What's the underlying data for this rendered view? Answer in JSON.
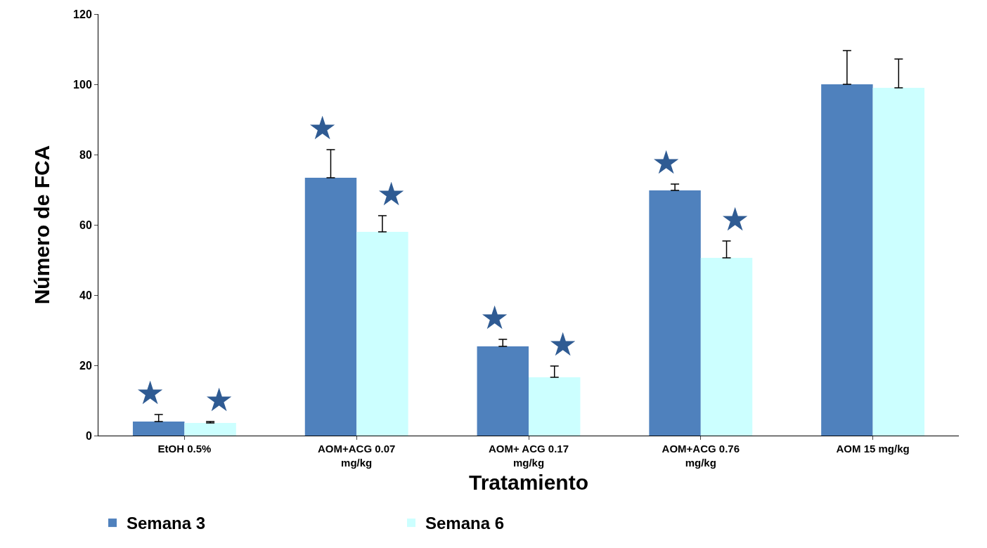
{
  "chart_data": {
    "type": "bar",
    "xlabel": "Tratamiento",
    "ylabel": "Número de FCA",
    "categories": [
      "EtOH 0.5%",
      "AOM+ACG 0.07 mg/kg",
      "AOM+ ACG 0.17 mg/kg",
      "AOM+ACG 0.76 mg/kg",
      "AOM 15 mg/kg"
    ],
    "series": [
      {
        "name": "Semana 3",
        "color": "#4f81bd",
        "values": [
          4,
          73.4,
          25.4,
          69.8,
          100
        ],
        "errors": [
          [
            4,
            6
          ],
          [
            73.4,
            81.4
          ],
          [
            25.4,
            27.4
          ],
          [
            69.8,
            71.6
          ],
          [
            100,
            109.6
          ]
        ]
      },
      {
        "name": "Semana 6",
        "color": "#ccffff",
        "values": [
          3.6,
          58,
          16.6,
          50.6,
          99
        ],
        "errors": [
          [
            3.6,
            4
          ],
          [
            58,
            62.6
          ],
          [
            16.6,
            19.8
          ],
          [
            50.6,
            55.4
          ],
          [
            99,
            107.2
          ]
        ]
      }
    ],
    "annotations": [
      {
        "text": "★",
        "x": "EtOH 0.5%",
        "y": 4
      },
      {
        "text": "★",
        "x": "EtOH 0.5%",
        "y": 3.6
      },
      {
        "text": "★",
        "x": "AOM+ACG 0.07 mg/kg",
        "y": 73.4
      },
      {
        "text": "★",
        "x": "AOM+ACG 0.07 mg/kg",
        "y": 58
      },
      {
        "text": "★",
        "x": "AOM+ ACG 0.17 mg/kg",
        "y": 25.4
      },
      {
        "text": "★",
        "x": "AOM+ ACG 0.17 mg/kg",
        "y": 16.6
      },
      {
        "text": "★",
        "x": "AOM+ACG 0.76 mg/kg",
        "y": 69.8
      },
      {
        "text": "★",
        "x": "AOM+ACG 0.76 mg/kg",
        "y": 50.6
      }
    ],
    "ylim": [
      0,
      120
    ],
    "yticks": [
      0,
      20,
      40,
      60,
      80,
      100,
      120
    ],
    "grid": false,
    "legend": "bottom left"
  }
}
